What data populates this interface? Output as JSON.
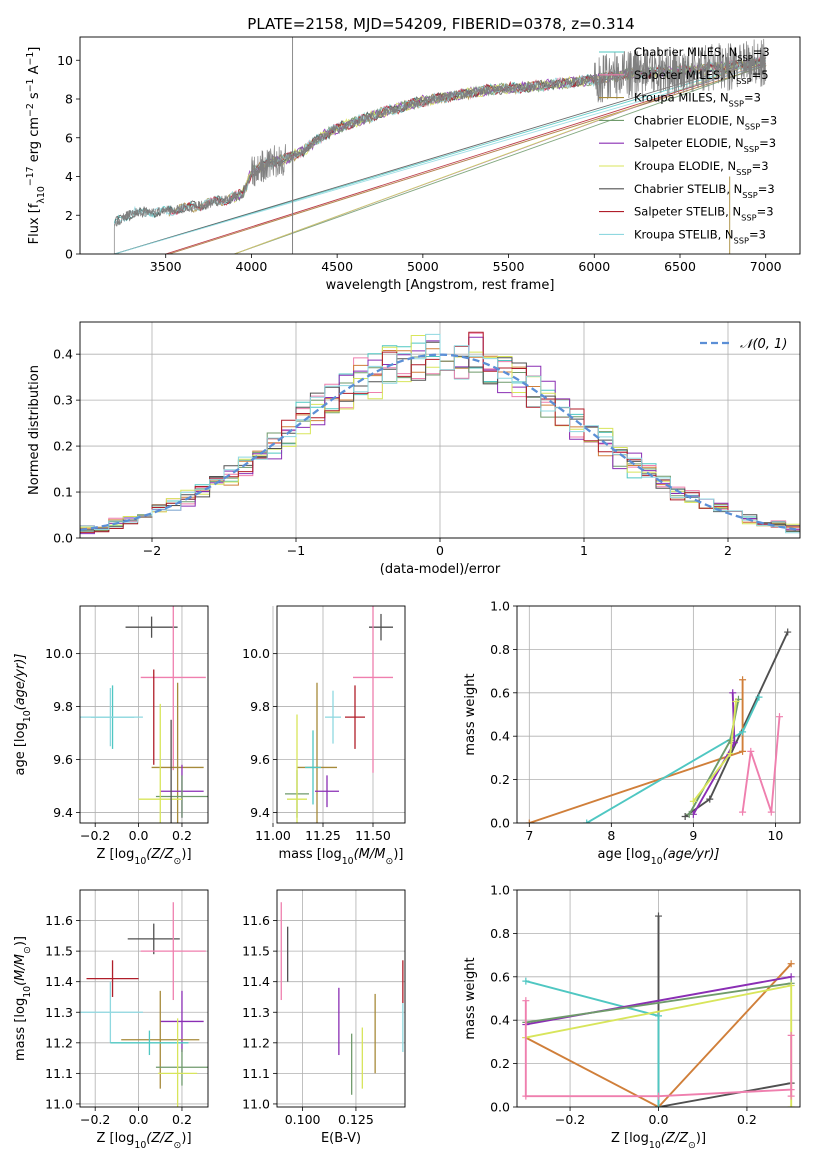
{
  "title": "PLATE=2158, MJD=54209, FIBERID=0378, z=0.314",
  "colors": {
    "Chabrier MILES": "#4fc7c2",
    "Salpeter MILES": "#ef7fae",
    "Kroupa MILES": "#a68a3a",
    "Chabrier ELODIE": "#6f9a6b",
    "Salpeter ELODIE": "#8a2eb4",
    "Kroupa ELODIE": "#d8e55b",
    "Chabrier STELIB": "#505050",
    "Salpeter STELIB": "#b01e2a",
    "Kroupa STELIB": "#8fd8e0",
    "Kroupa MILES curve": "#d07f3a",
    "normal": "#5b8fd6",
    "data": "#808080"
  },
  "chart_data": [
    {
      "id": "spectrum",
      "type": "line",
      "xlabel": "wavelength [Angstrom, rest frame]",
      "ylabel": "Flux [f",
      "ylabel_parts": [
        "Flux [f",
        "λ",
        "10",
        "−17",
        " erg cm",
        "−2",
        " s",
        "−1",
        " A",
        "−1",
        "]"
      ],
      "xlim": [
        3000,
        7200
      ],
      "ylim": [
        0,
        11.2
      ],
      "xticks": [
        "3500",
        "4000",
        "4500",
        "5000",
        "5500",
        "6000",
        "6500",
        "7000"
      ],
      "xtick_values": [
        3500,
        4000,
        4500,
        5000,
        5500,
        6000,
        6500,
        7000
      ],
      "yticks": [
        "0",
        "2",
        "4",
        "6",
        "8",
        "10"
      ],
      "ytick_values": [
        0,
        2,
        4,
        6,
        8,
        10
      ],
      "data_range": [
        3200,
        7000
      ],
      "continuum": [
        [
          3200,
          1.6
        ],
        [
          3300,
          2.1
        ],
        [
          3500,
          2.2
        ],
        [
          3700,
          2.5
        ],
        [
          3850,
          2.8
        ],
        [
          3950,
          3.1
        ],
        [
          4000,
          4.2
        ],
        [
          4100,
          4.7
        ],
        [
          4200,
          4.9
        ],
        [
          4300,
          5.3
        ],
        [
          4400,
          6.0
        ],
        [
          4500,
          6.5
        ],
        [
          4600,
          6.8
        ],
        [
          4800,
          7.4
        ],
        [
          5000,
          7.9
        ],
        [
          5200,
          8.2
        ],
        [
          5400,
          8.5
        ],
        [
          5600,
          8.6
        ],
        [
          5800,
          8.8
        ],
        [
          6000,
          9.0
        ],
        [
          6200,
          9.3
        ],
        [
          6400,
          9.4
        ],
        [
          6600,
          9.5
        ],
        [
          6800,
          9.7
        ],
        [
          7000,
          9.9
        ]
      ],
      "legend": [
        {
          "label": "Chabrier MILES, N",
          "sub": "SSP",
          "tail": "=3"
        },
        {
          "label": "Salpeter MILES, N",
          "sub": "SSP",
          "tail": "=5"
        },
        {
          "label": "Kroupa MILES, N",
          "sub": "SSP",
          "tail": "=3"
        },
        {
          "label": "Chabrier ELODIE, N",
          "sub": "SSP",
          "tail": "=3"
        },
        {
          "label": "Salpeter ELODIE, N",
          "sub": "SSP",
          "tail": "=3"
        },
        {
          "label": "Kroupa ELODIE, N",
          "sub": "SSP",
          "tail": "=3"
        },
        {
          "label": "Chabrier STELIB, N",
          "sub": "SSP",
          "tail": "=3"
        },
        {
          "label": "Salpeter STELIB, N",
          "sub": "SSP",
          "tail": "=3"
        },
        {
          "label": "Kroupa STELIB, N",
          "sub": "SSP",
          "tail": "=3"
        }
      ],
      "legend_placement": "upper-right"
    },
    {
      "id": "residuals",
      "type": "histogram",
      "xlabel": "(data-model)/error",
      "ylabel": "Normed distribution",
      "xlim": [
        -2.5,
        2.5
      ],
      "ylim": [
        0,
        0.47
      ],
      "xticks": [
        "−2",
        "−1",
        "0",
        "1",
        "2"
      ],
      "xtick_values": [
        -2,
        -1,
        0,
        1,
        2
      ],
      "yticks": [
        "0.0",
        "0.1",
        "0.2",
        "0.3",
        "0.4"
      ],
      "ytick_values": [
        0,
        0.1,
        0.2,
        0.3,
        0.4
      ],
      "grid": true,
      "bin_width": 0.1,
      "legend": "𝒩(0, 1)",
      "legend_placement": "upper-right"
    },
    {
      "id": "age-vs-Z",
      "type": "errorbar",
      "xlabel": "Z [log",
      "xlabel_parts": [
        "Z [log",
        "10",
        "(Z/Z",
        "⊙",
        ")]"
      ],
      "ylabel_parts": [
        "age  [log",
        "10",
        "(age/yr)]"
      ],
      "xlim": [
        -0.27,
        0.32
      ],
      "ylim": [
        9.36,
        10.18
      ],
      "xticks": [
        "−0.2",
        "0.0",
        "0.2"
      ],
      "xtick_values": [
        -0.2,
        0,
        0.2
      ],
      "yticks": [
        "9.4",
        "9.6",
        "9.8",
        "10.0"
      ],
      "ytick_values": [
        9.4,
        9.6,
        9.8,
        10.0
      ],
      "points": [
        {
          "s": "Chabrier STELIB",
          "x": 0.06,
          "xe": 0.12,
          "y": 10.1,
          "ye": 0.04
        },
        {
          "s": "Salpeter MILES",
          "x": 0.16,
          "xe": 0.15,
          "y": 9.91,
          "ye": 0.35
        },
        {
          "s": "Kroupa MILES",
          "x": 0.18,
          "xe": 0.12,
          "y": 9.57,
          "ye": 0.32
        },
        {
          "s": "Chabrier MILES",
          "x": -0.12,
          "xe": 0.1,
          "y": 9.76,
          "ye": 0.12
        },
        {
          "s": "Kroupa STELIB",
          "x": -0.13,
          "xe": 0.15,
          "y": 9.76,
          "ye": 0.11
        },
        {
          "s": "Salpeter STELIB",
          "x": 0.07,
          "xe": 0.0,
          "y": 9.76,
          "ye": 0.18
        },
        {
          "s": "Salpeter ELODIE",
          "x": 0.2,
          "xe": 0.1,
          "y": 9.48,
          "ye": 0.1
        },
        {
          "s": "Chabrier ELODIE",
          "x": 0.2,
          "xe": 0.12,
          "y": 9.46,
          "ye": 0.08
        },
        {
          "s": "Kroupa ELODIE",
          "x": 0.1,
          "xe": 0.1,
          "y": 9.45,
          "ye": 0.36
        },
        {
          "s": "Chabrier STELIB",
          "x": 0.15,
          "xe": 0.0,
          "y": 9.55,
          "ye": 0.2
        }
      ]
    },
    {
      "id": "age-vs-mass",
      "type": "errorbar",
      "xlabel_parts": [
        "mass [log",
        "10",
        "(M/M",
        "⊙",
        ")]"
      ],
      "xlim": [
        11.02,
        11.66
      ],
      "ylim": [
        9.36,
        10.18
      ],
      "xticks": [
        "11.00",
        "11.25",
        "11.50"
      ],
      "xtick_values": [
        11.0,
        11.25,
        11.5
      ],
      "yticks": [
        "9.4",
        "9.6",
        "9.8",
        "10.0"
      ],
      "ytick_values": [
        9.4,
        9.6,
        9.8,
        10.0
      ],
      "points": [
        {
          "s": "Chabrier STELIB",
          "x": 11.54,
          "xe": 0.06,
          "y": 10.1,
          "ye": 0.05
        },
        {
          "s": "Salpeter MILES",
          "x": 11.5,
          "xe": 0.1,
          "y": 9.91,
          "ye": 0.36
        },
        {
          "s": "Kroupa MILES",
          "x": 11.22,
          "xe": 0.1,
          "y": 9.57,
          "ye": 0.32
        },
        {
          "s": "Salpeter STELIB",
          "x": 11.41,
          "xe": 0.05,
          "y": 9.76,
          "ye": 0.12
        },
        {
          "s": "Kroupa STELIB",
          "x": 11.3,
          "xe": 0.04,
          "y": 9.76,
          "ye": 0.1
        },
        {
          "s": "Salpeter ELODIE",
          "x": 11.27,
          "xe": 0.06,
          "y": 9.48,
          "ye": 0.06
        },
        {
          "s": "Chabrier ELODIE",
          "x": 11.12,
          "xe": 0.06,
          "y": 9.47,
          "ye": 0.09
        },
        {
          "s": "Kroupa ELODIE",
          "x": 11.12,
          "xe": 0.05,
          "y": 9.45,
          "ye": 0.32
        },
        {
          "s": "Chabrier MILES",
          "x": 11.2,
          "xe": 0.04,
          "y": 9.57,
          "ye": 0.14
        }
      ]
    },
    {
      "id": "weight-vs-age",
      "type": "line",
      "xlabel_parts": [
        "age  [log",
        "10",
        "(age/yr)]"
      ],
      "ylabel": "mass weight",
      "xlim": [
        6.85,
        10.3
      ],
      "ylim": [
        0,
        1.0
      ],
      "xticks": [
        "7",
        "8",
        "9",
        "10"
      ],
      "xtick_values": [
        7,
        8,
        9,
        10
      ],
      "yticks": [
        "0.0",
        "0.2",
        "0.4",
        "0.6",
        "0.8",
        "1.0"
      ],
      "ytick_values": [
        0,
        0.2,
        0.4,
        0.6,
        0.8,
        1.0
      ],
      "series": [
        {
          "name": "Chabrier STELIB",
          "x": [
            8.9,
            9.2,
            10.15
          ],
          "y": [
            0.03,
            0.11,
            0.88
          ]
        },
        {
          "name": "Kroupa MILES",
          "x": [
            7.0,
            9.6,
            9.6
          ],
          "y": [
            0.0,
            0.33,
            0.66
          ]
        },
        {
          "name": "Chabrier MILES",
          "x": [
            7.7,
            9.6,
            9.8
          ],
          "y": [
            0.0,
            0.42,
            0.58
          ]
        },
        {
          "name": "Salpeter MILES",
          "x": [
            9.6,
            9.7,
            9.95,
            10.05
          ],
          "y": [
            0.05,
            0.33,
            0.05,
            0.49
          ]
        },
        {
          "name": "Salpeter ELODIE",
          "x": [
            9.0,
            9.5,
            9.48
          ],
          "y": [
            0.04,
            0.37,
            0.6
          ]
        },
        {
          "name": "Chabrier ELODIE",
          "x": [
            8.95,
            9.45,
            9.55
          ],
          "y": [
            0.04,
            0.38,
            0.57
          ]
        },
        {
          "name": "Kroupa ELODIE",
          "x": [
            9.0,
            9.45,
            9.52
          ],
          "y": [
            0.1,
            0.32,
            0.56
          ]
        }
      ]
    },
    {
      "id": "mass-vs-Z",
      "type": "errorbar",
      "xlabel_parts": [
        "Z [log",
        "10",
        "(Z/Z",
        "⊙",
        ")]"
      ],
      "ylabel_parts": [
        "mass [log",
        "10",
        "(M/M",
        "⊙",
        ")]"
      ],
      "xlim": [
        -0.27,
        0.32
      ],
      "ylim": [
        10.99,
        11.7
      ],
      "xticks": [
        "−0.2",
        "0.0",
        "0.2"
      ],
      "xtick_values": [
        -0.2,
        0,
        0.2
      ],
      "yticks": [
        "11.0",
        "11.1",
        "11.2",
        "11.3",
        "11.4",
        "11.5",
        "11.6"
      ],
      "ytick_values": [
        11.0,
        11.1,
        11.2,
        11.3,
        11.4,
        11.5,
        11.6
      ],
      "points": [
        {
          "s": "Chabrier STELIB",
          "x": 0.07,
          "xe": 0.12,
          "y": 11.54,
          "ye": 0.05
        },
        {
          "s": "Salpeter MILES",
          "x": 0.16,
          "xe": 0.15,
          "y": 11.5,
          "ye": 0.16
        },
        {
          "s": "Salpeter STELIB",
          "x": -0.12,
          "xe": 0.12,
          "y": 11.41,
          "ye": 0.06
        },
        {
          "s": "Kroupa STELIB",
          "x": -0.13,
          "xe": 0.15,
          "y": 11.3,
          "ye": 0.1
        },
        {
          "s": "Salpeter ELODIE",
          "x": 0.2,
          "xe": 0.1,
          "y": 11.27,
          "ye": 0.1
        },
        {
          "s": "Kroupa MILES",
          "x": 0.1,
          "xe": 0.18,
          "y": 11.21,
          "ye": 0.16
        },
        {
          "s": "Chabrier MILES",
          "x": 0.05,
          "xe": 0.18,
          "y": 11.2,
          "ye": 0.04
        },
        {
          "s": "Chabrier ELODIE",
          "x": 0.2,
          "xe": 0.12,
          "y": 11.12,
          "ye": 0.06
        },
        {
          "s": "Kroupa ELODIE",
          "x": 0.18,
          "xe": 0.09,
          "y": 11.1,
          "ye": 0.18
        }
      ]
    },
    {
      "id": "mass-vs-EBV",
      "type": "errorbar",
      "xlabel": "E(B-V)",
      "xlim": [
        0.088,
        0.148
      ],
      "ylim": [
        10.99,
        11.7
      ],
      "xticks": [
        "0.100",
        "0.125"
      ],
      "xtick_values": [
        0.1,
        0.125
      ],
      "yticks": [
        "11.0",
        "11.1",
        "11.2",
        "11.3",
        "11.4",
        "11.5",
        "11.6"
      ],
      "ytick_values": [
        11.0,
        11.1,
        11.2,
        11.3,
        11.4,
        11.5,
        11.6
      ],
      "points": [
        {
          "s": "Salpeter MILES",
          "x": 0.09,
          "y": 11.5,
          "ye": 0.16
        },
        {
          "s": "Chabrier STELIB",
          "x": 0.093,
          "y": 11.49,
          "ye": 0.09
        },
        {
          "s": "Salpeter ELODIE",
          "x": 0.117,
          "y": 11.27,
          "ye": 0.11
        },
        {
          "s": "Chabrier ELODIE",
          "x": 0.123,
          "y": 11.13,
          "ye": 0.1
        },
        {
          "s": "Kroupa ELODIE",
          "x": 0.128,
          "y": 11.15,
          "ye": 0.1
        },
        {
          "s": "Kroupa MILES",
          "x": 0.134,
          "y": 11.23,
          "ye": 0.13
        },
        {
          "s": "Salpeter STELIB",
          "x": 0.147,
          "y": 11.4,
          "ye": 0.07
        },
        {
          "s": "Kroupa STELIB",
          "x": 0.147,
          "y": 11.25,
          "ye": 0.08
        }
      ]
    },
    {
      "id": "weight-vs-Z",
      "type": "line",
      "xlabel_parts": [
        "Z [log",
        "10",
        "(Z/Z",
        "⊙",
        ")]"
      ],
      "ylabel": "mass weight",
      "xlim": [
        -0.32,
        0.32
      ],
      "ylim": [
        0,
        1.0
      ],
      "xticks": [
        "−0.2",
        "0.0",
        "0.2"
      ],
      "xtick_values": [
        -0.2,
        0,
        0.2
      ],
      "yticks": [
        "0.0",
        "0.2",
        "0.4",
        "0.6",
        "0.8",
        "1.0"
      ],
      "ytick_values": [
        0,
        0.2,
        0.4,
        0.6,
        0.8,
        1.0
      ],
      "series": [
        {
          "name": "Chabrier STELIB",
          "x": [
            0.0,
            0.0,
            0.3
          ],
          "y": [
            0.88,
            0.0,
            0.11
          ]
        },
        {
          "name": "Kroupa MILES",
          "x": [
            -0.3,
            0.0,
            0.3
          ],
          "y": [
            0.32,
            0.0,
            0.66
          ]
        },
        {
          "name": "Chabrier MILES",
          "x": [
            -0.3,
            0.0,
            0.0
          ],
          "y": [
            0.58,
            0.42,
            0.0
          ]
        },
        {
          "name": "Salpeter ELODIE",
          "x": [
            -0.3,
            0.3
          ],
          "y": [
            0.38,
            0.6
          ]
        },
        {
          "name": "Chabrier ELODIE",
          "x": [
            -0.3,
            0.3
          ],
          "y": [
            0.39,
            0.57
          ]
        },
        {
          "name": "Kroupa ELODIE",
          "x": [
            -0.3,
            0.3,
            0.3
          ],
          "y": [
            0.32,
            0.56,
            0.0
          ]
        },
        {
          "name": "Salpeter MILES",
          "x": [
            -0.3,
            -0.3,
            0.0,
            0.3,
            0.3,
            0.3
          ],
          "y": [
            0.49,
            0.05,
            0.05,
            0.08,
            0.33,
            0.05
          ]
        }
      ]
    }
  ]
}
